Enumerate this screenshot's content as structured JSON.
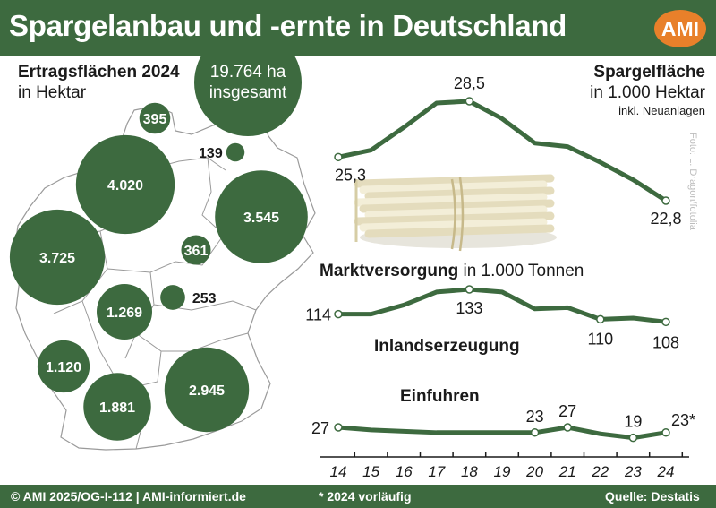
{
  "header": {
    "title": "Spargelanbau und -ernte in Deutschland",
    "logo_text": "AMI"
  },
  "map": {
    "heading": "Ertragsflächen 2024",
    "unit": "in Hektar",
    "total_value": "19.764 ha",
    "total_label": "insgesamt",
    "bubbles": [
      {
        "label": "395",
        "value": 395,
        "state": "Schleswig-Holstein"
      },
      {
        "label": "139",
        "value": 139,
        "state": "Mecklenburg-Vorpommern"
      },
      {
        "label": "4.020",
        "value": 4020,
        "state": "Niedersachsen"
      },
      {
        "label": "3.545",
        "value": 3545,
        "state": "Brandenburg"
      },
      {
        "label": "361",
        "value": 361,
        "state": "Sachsen-Anhalt"
      },
      {
        "label": "3.725",
        "value": 3725,
        "state": "Nordrhein-Westfalen"
      },
      {
        "label": "253",
        "value": 253,
        "state": "Thüringen"
      },
      {
        "label": "1.269",
        "value": 1269,
        "state": "Hessen"
      },
      {
        "label": "1.120",
        "value": 1120,
        "state": "Rheinland-Pfalz"
      },
      {
        "label": "2.945",
        "value": 2945,
        "state": "Bayern"
      },
      {
        "label": "1.881",
        "value": 1881,
        "state": "Baden-Württemberg"
      }
    ]
  },
  "chart_data": [
    {
      "type": "line",
      "title": "Spargelfläche",
      "subtitle": "in 1.000 Hektar",
      "note": "inkl. Neuanlagen",
      "x": [
        "14",
        "15",
        "16",
        "17",
        "18",
        "19",
        "20",
        "21",
        "22",
        "23",
        "24"
      ],
      "values": [
        25.3,
        25.7,
        27.0,
        28.4,
        28.5,
        27.5,
        26.1,
        25.9,
        25.0,
        24.0,
        22.8
      ],
      "labels": [
        {
          "index": 0,
          "text": "25,3"
        },
        {
          "index": 4,
          "text": "28,5"
        },
        {
          "index": 10,
          "text": "22,8"
        }
      ]
    },
    {
      "type": "line",
      "title": "Marktversorgung",
      "subtitle": "in 1.000 Tonnen",
      "x": [
        "14",
        "15",
        "16",
        "17",
        "18",
        "19",
        "20",
        "21",
        "22",
        "23",
        "24"
      ],
      "series": [
        {
          "name": "Inlandserzeugung",
          "values": [
            114,
            114,
            121,
            131,
            133,
            131,
            118,
            119,
            110,
            111,
            108
          ],
          "labels": [
            {
              "index": 0,
              "text": "114"
            },
            {
              "index": 4,
              "text": "133"
            },
            {
              "index": 8,
              "text": "110"
            },
            {
              "index": 10,
              "text": "108"
            }
          ]
        },
        {
          "name": "Einfuhren",
          "values": [
            27,
            25,
            24,
            23,
            23,
            23,
            23,
            27,
            22,
            19,
            23
          ],
          "labels": [
            {
              "index": 0,
              "text": "27"
            },
            {
              "index": 6,
              "text": "23"
            },
            {
              "index": 7,
              "text": "27"
            },
            {
              "index": 9,
              "text": "19"
            },
            {
              "index": 10,
              "text": "23*"
            }
          ]
        }
      ]
    }
  ],
  "photo_credit": "Foto: L. Dragon/fotolia",
  "footer": {
    "copyright": "© AMI 2025/OG-I-112 | AMI-informiert.de",
    "footnote": "* 2024 vorläufig",
    "source": "Quelle: Destatis"
  },
  "colors": {
    "brand_green": "#3d6a3f",
    "logo_orange": "#e8802a",
    "line_green": "#3d6a3f",
    "map_fill": "#ffffff"
  }
}
